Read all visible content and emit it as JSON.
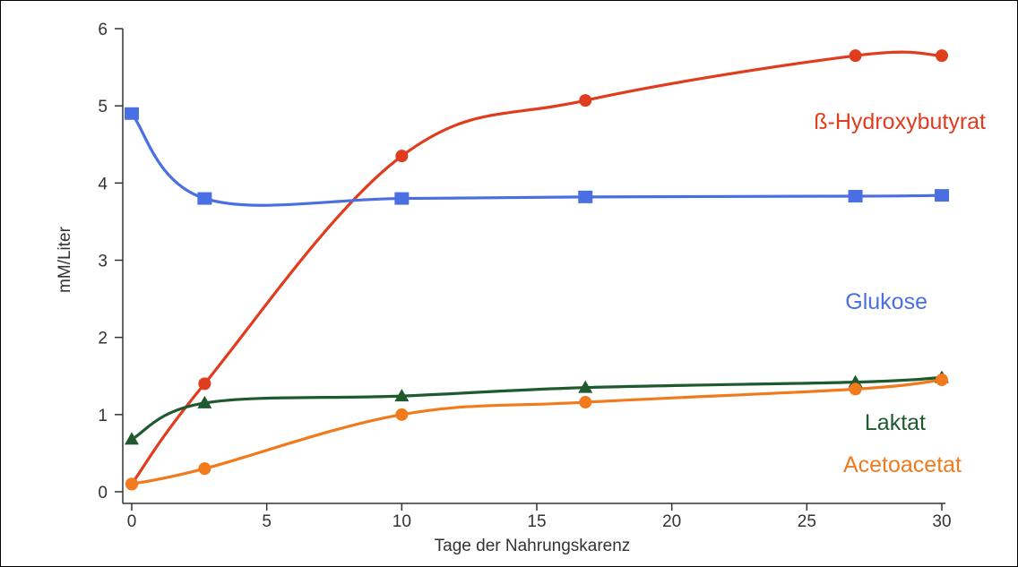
{
  "chart_data": {
    "type": "line",
    "xlabel": "Tage der Nahrungskarenz",
    "ylabel": "mM/Liter",
    "xlim": [
      0,
      30
    ],
    "ylim": [
      0,
      6
    ],
    "xticks": [
      0,
      5,
      10,
      15,
      20,
      25,
      30
    ],
    "yticks": [
      0,
      1,
      2,
      3,
      4,
      5,
      6
    ],
    "grid": false,
    "series": [
      {
        "name": "ß-Hydroxybutyrat",
        "color": "#e03c1e",
        "marker": "circle",
        "x": [
          0,
          2.7,
          10,
          16.8,
          26.8,
          30
        ],
        "y": [
          0.1,
          1.4,
          4.35,
          5.07,
          5.65,
          5.65
        ]
      },
      {
        "name": "Glukose",
        "color": "#4a6fe3",
        "marker": "square",
        "x": [
          0,
          2.7,
          10,
          16.8,
          26.8,
          30
        ],
        "y": [
          4.9,
          3.8,
          3.8,
          3.82,
          3.83,
          3.84
        ]
      },
      {
        "name": "Laktat",
        "color": "#1f5a2e",
        "marker": "triangle",
        "x": [
          0,
          2.7,
          10,
          16.8,
          26.8,
          30
        ],
        "y": [
          0.68,
          1.15,
          1.24,
          1.35,
          1.42,
          1.48
        ]
      },
      {
        "name": "Acetoacetat",
        "color": "#f07a1c",
        "marker": "circle",
        "x": [
          0,
          2.7,
          10,
          16.8,
          26.8,
          30
        ],
        "y": [
          0.1,
          0.3,
          1.0,
          1.16,
          1.33,
          1.45
        ]
      }
    ]
  }
}
